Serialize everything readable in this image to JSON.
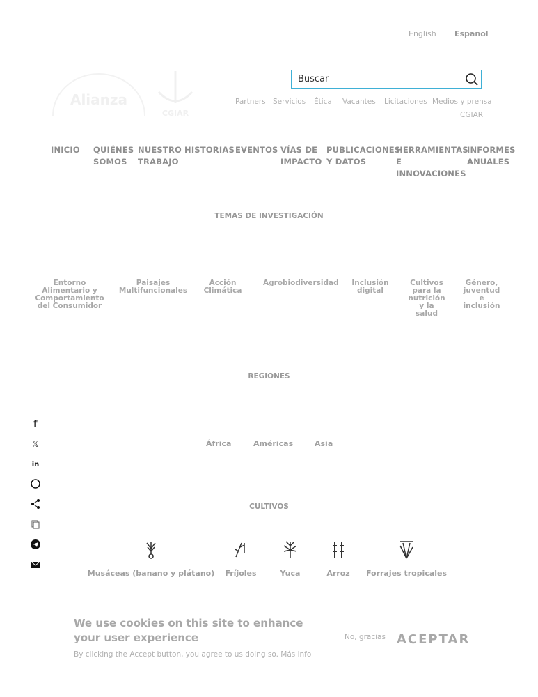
{
  "languages": [
    {
      "label": "English",
      "active": false
    },
    {
      "label": "Español",
      "active": true
    }
  ],
  "logos": {
    "alliance": "Alianza Bioversity y CIAT",
    "cgiar": "CGIAR"
  },
  "search": {
    "placeholder": "Buscar",
    "icon": "search-icon",
    "border_color": "#3fb0d6"
  },
  "utility_links": [
    "Partners",
    "Servicios",
    "Ética",
    "Vacantes",
    "Licitaciones",
    "Medios y prensa",
    "CGIAR"
  ],
  "nav": [
    {
      "label": "INICIO"
    },
    {
      "label": "QUIÉNES\nSOMOS"
    },
    {
      "label": "NUESTRO\nTRABAJO"
    },
    {
      "label": "HISTORIAS"
    },
    {
      "label": "EVENTOS"
    },
    {
      "label": "VÍAS DE\nIMPACTO"
    },
    {
      "label": "PUBLICACIONES\nY DATOS"
    },
    {
      "label": "HERRAMIENTAS\nE\nINNOVACIONES"
    },
    {
      "label": "INFORMES\nANUALES"
    }
  ],
  "research": {
    "title": "TEMAS DE INVESTIGACIÓN",
    "topics": [
      "Entorno\nAlimentario y\nComportamiento\ndel Consumidor",
      "Paisajes\nMultifuncionales",
      "Acción\nClimática",
      "Agrobiodiversidad",
      "Inclusión\ndigital",
      "Cultivos\npara la\nnutrición\ny la\nsalud",
      "Género,\njuventud\ne\ninclusión"
    ]
  },
  "regions": {
    "title": "REGIONES",
    "items": [
      "África",
      "Américas",
      "Asia"
    ]
  },
  "crops": {
    "title": "CULTIVOS",
    "items": [
      {
        "label": "Musáceas (banano y plátano)",
        "icon": "banana-icon"
      },
      {
        "label": "Fríjoles",
        "icon": "bean-icon"
      },
      {
        "label": "Yuca",
        "icon": "cassava-icon"
      },
      {
        "label": "Arroz",
        "icon": "rice-icon"
      },
      {
        "label": "Forrajes tropicales",
        "icon": "forage-icon"
      }
    ]
  },
  "share": [
    "facebook",
    "x",
    "linkedin",
    "whatsapp",
    "share",
    "copy",
    "telegram",
    "email"
  ],
  "cookie": {
    "title": "We use cookies on this site to enhance your user experience",
    "text": "By clicking the Accept button, you agree to us doing so.",
    "more": "Más info",
    "decline": "No, gracias",
    "accept": "ACEPTAR"
  }
}
